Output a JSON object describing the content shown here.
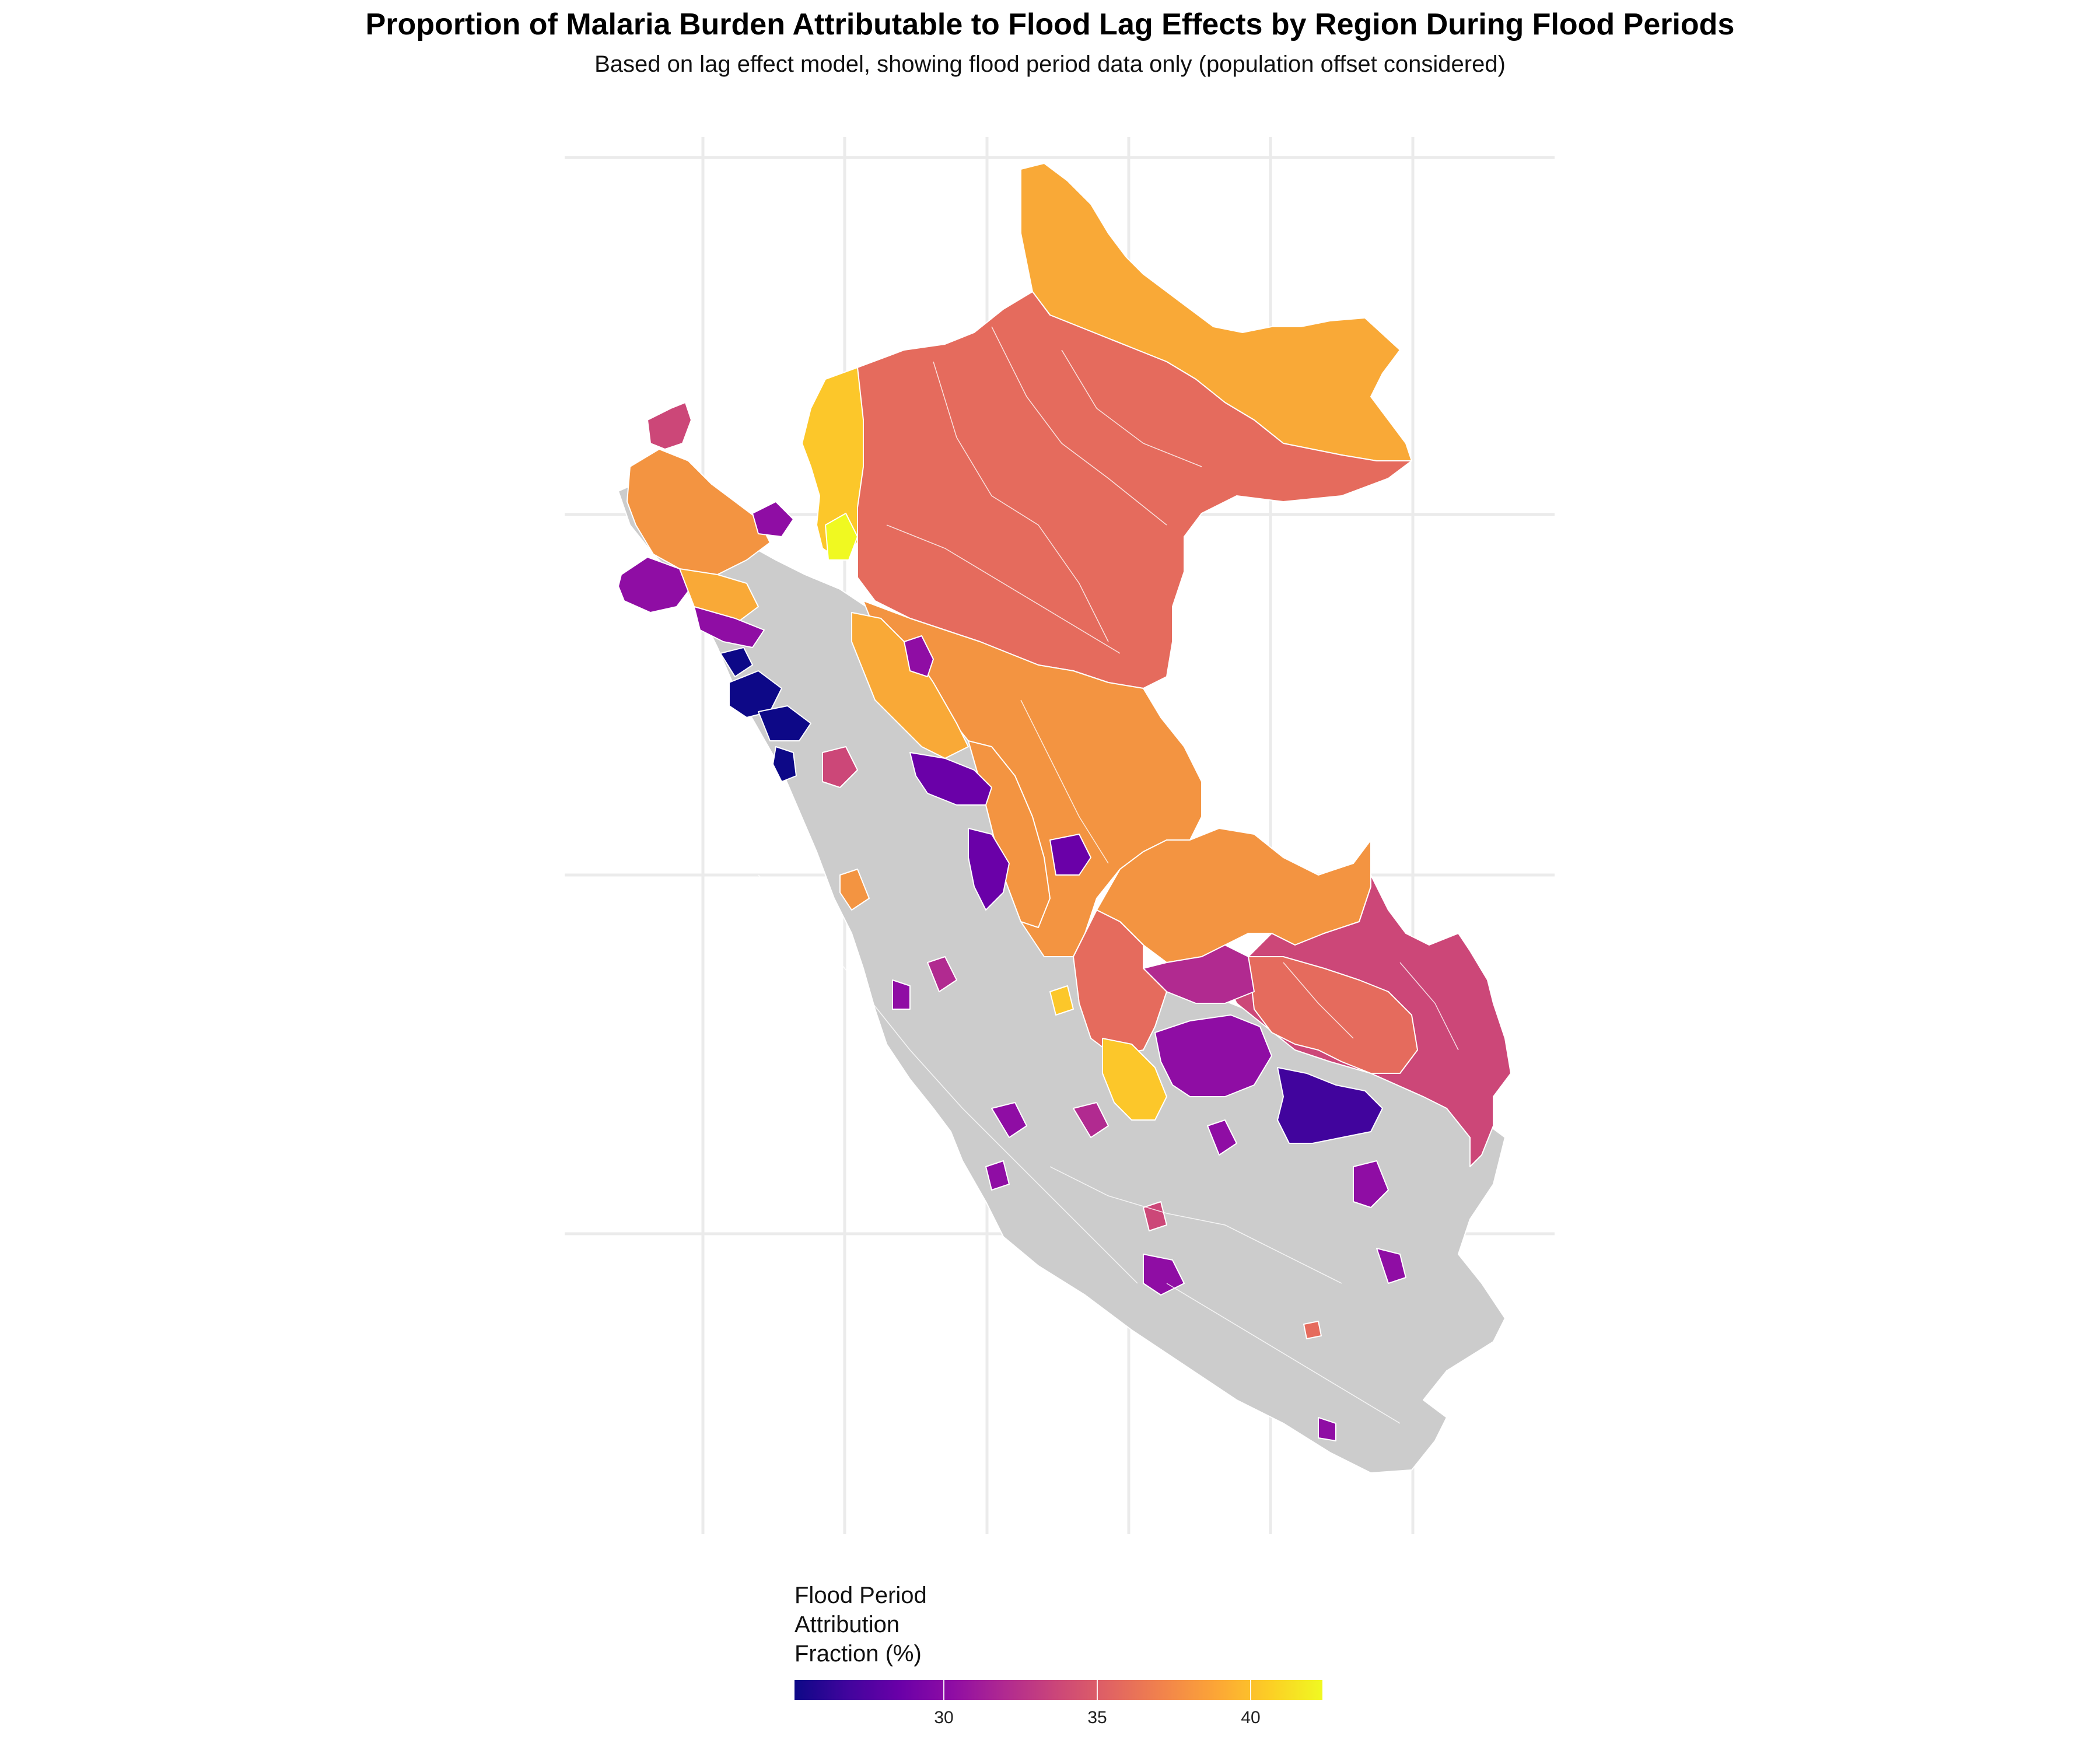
{
  "title": "Proportion of Malaria Burden Attributable to Flood Lag Effects by Region During Flood Periods",
  "subtitle": "Based on lag effect model, showing flood period data only (population offset considered)",
  "legend": {
    "title_lines": [
      "Flood Period",
      "Attribution",
      "Fraction (%)"
    ],
    "ticks": [
      "30",
      "35",
      "40"
    ],
    "palette": [
      "#0d0887",
      "#6a00a8",
      "#b12a90",
      "#e16462",
      "#fca636",
      "#f0f921"
    ],
    "no_data_color": "#cccccc"
  },
  "colors": {
    "deep_blue": "#0d0887",
    "purple": "#7a04a8",
    "magenta": "#b12a90",
    "rose": "#cc4778",
    "coral": "#e56b5d",
    "orange": "#f39441",
    "amber": "#f9a937",
    "yellow": "#fcc72a",
    "bright_yellow": "#f0f921",
    "grey": "#cccccc",
    "grid": "#ebebeb"
  }
}
